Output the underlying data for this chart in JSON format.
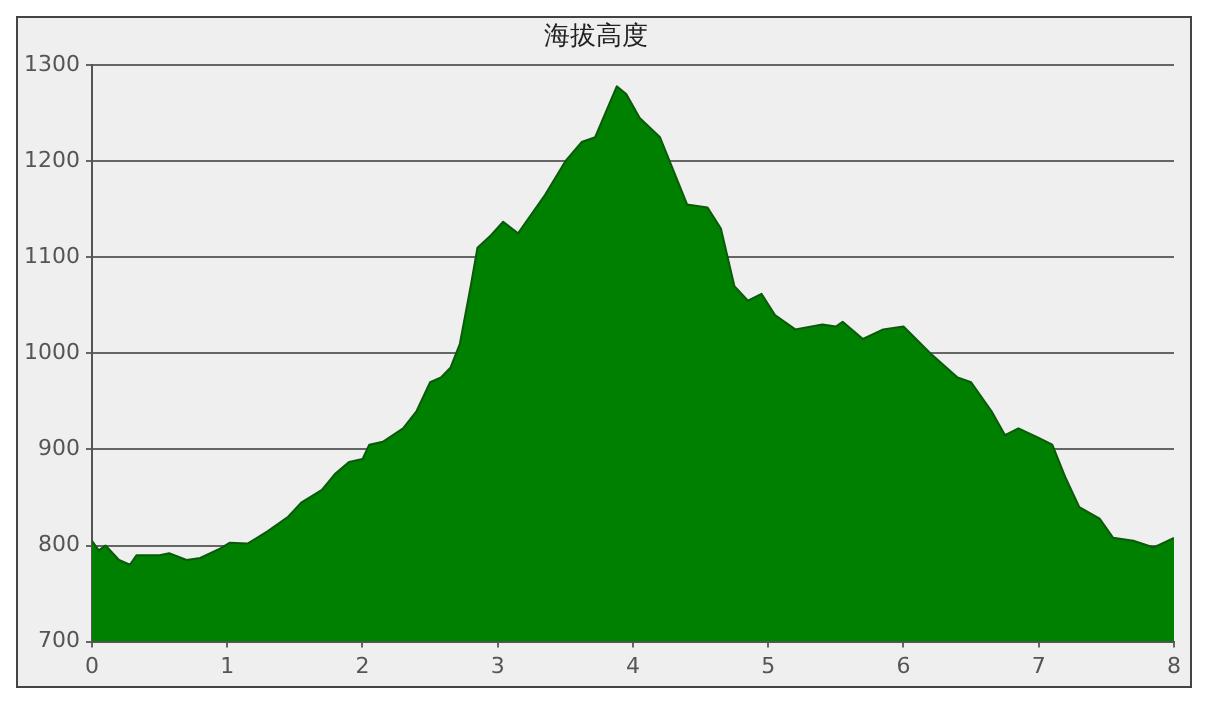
{
  "chart_data": {
    "type": "area",
    "title": "海拔高度",
    "xlim": [
      0,
      8
    ],
    "xticks": [
      0,
      1,
      2,
      3,
      4,
      5,
      6,
      7,
      8
    ],
    "ylim": [
      700,
      1300
    ],
    "yticks": [
      700,
      800,
      900,
      1000,
      1100,
      1200,
      1300
    ],
    "grid": "y",
    "legend": false,
    "marker": "none",
    "series": [
      {
        "color": "#008000",
        "x": [
          0,
          0.05,
          0.1,
          0.2,
          0.28,
          0.33,
          0.5,
          0.57,
          0.7,
          0.8,
          0.95,
          1.02,
          1.15,
          1.3,
          1.45,
          1.55,
          1.7,
          1.8,
          1.9,
          2.0,
          2.05,
          2.15,
          2.3,
          2.4,
          2.5,
          2.58,
          2.65,
          2.72,
          2.8,
          2.85,
          2.95,
          3.04,
          3.15,
          3.25,
          3.35,
          3.5,
          3.62,
          3.72,
          3.88,
          3.95,
          4.05,
          4.2,
          4.3,
          4.4,
          4.55,
          4.65,
          4.75,
          4.85,
          4.95,
          5.05,
          5.2,
          5.4,
          5.5,
          5.55,
          5.7,
          5.85,
          6.0,
          6.2,
          6.4,
          6.5,
          6.65,
          6.75,
          6.85,
          7.0,
          7.1,
          7.2,
          7.3,
          7.45,
          7.55,
          7.7,
          7.85,
          8.0
        ],
        "values": [
          805,
          795,
          800,
          785,
          780,
          790,
          790,
          792,
          785,
          787,
          797,
          803,
          802,
          815,
          830,
          845,
          858,
          875,
          887,
          890,
          905,
          908,
          922,
          940,
          970,
          975,
          985,
          1010,
          1070,
          1110,
          1123,
          1137,
          1125,
          1145,
          1165,
          1200,
          1220,
          1225,
          1278,
          1270,
          1245,
          1225,
          1190,
          1155,
          1152,
          1130,
          1070,
          1055,
          1062,
          1040,
          1025,
          1030,
          1028,
          1033,
          1015,
          1025,
          1028,
          1000,
          975,
          970,
          940,
          915,
          922,
          912,
          905,
          870,
          840,
          828,
          808,
          805,
          798,
          808
        ]
      }
    ]
  }
}
